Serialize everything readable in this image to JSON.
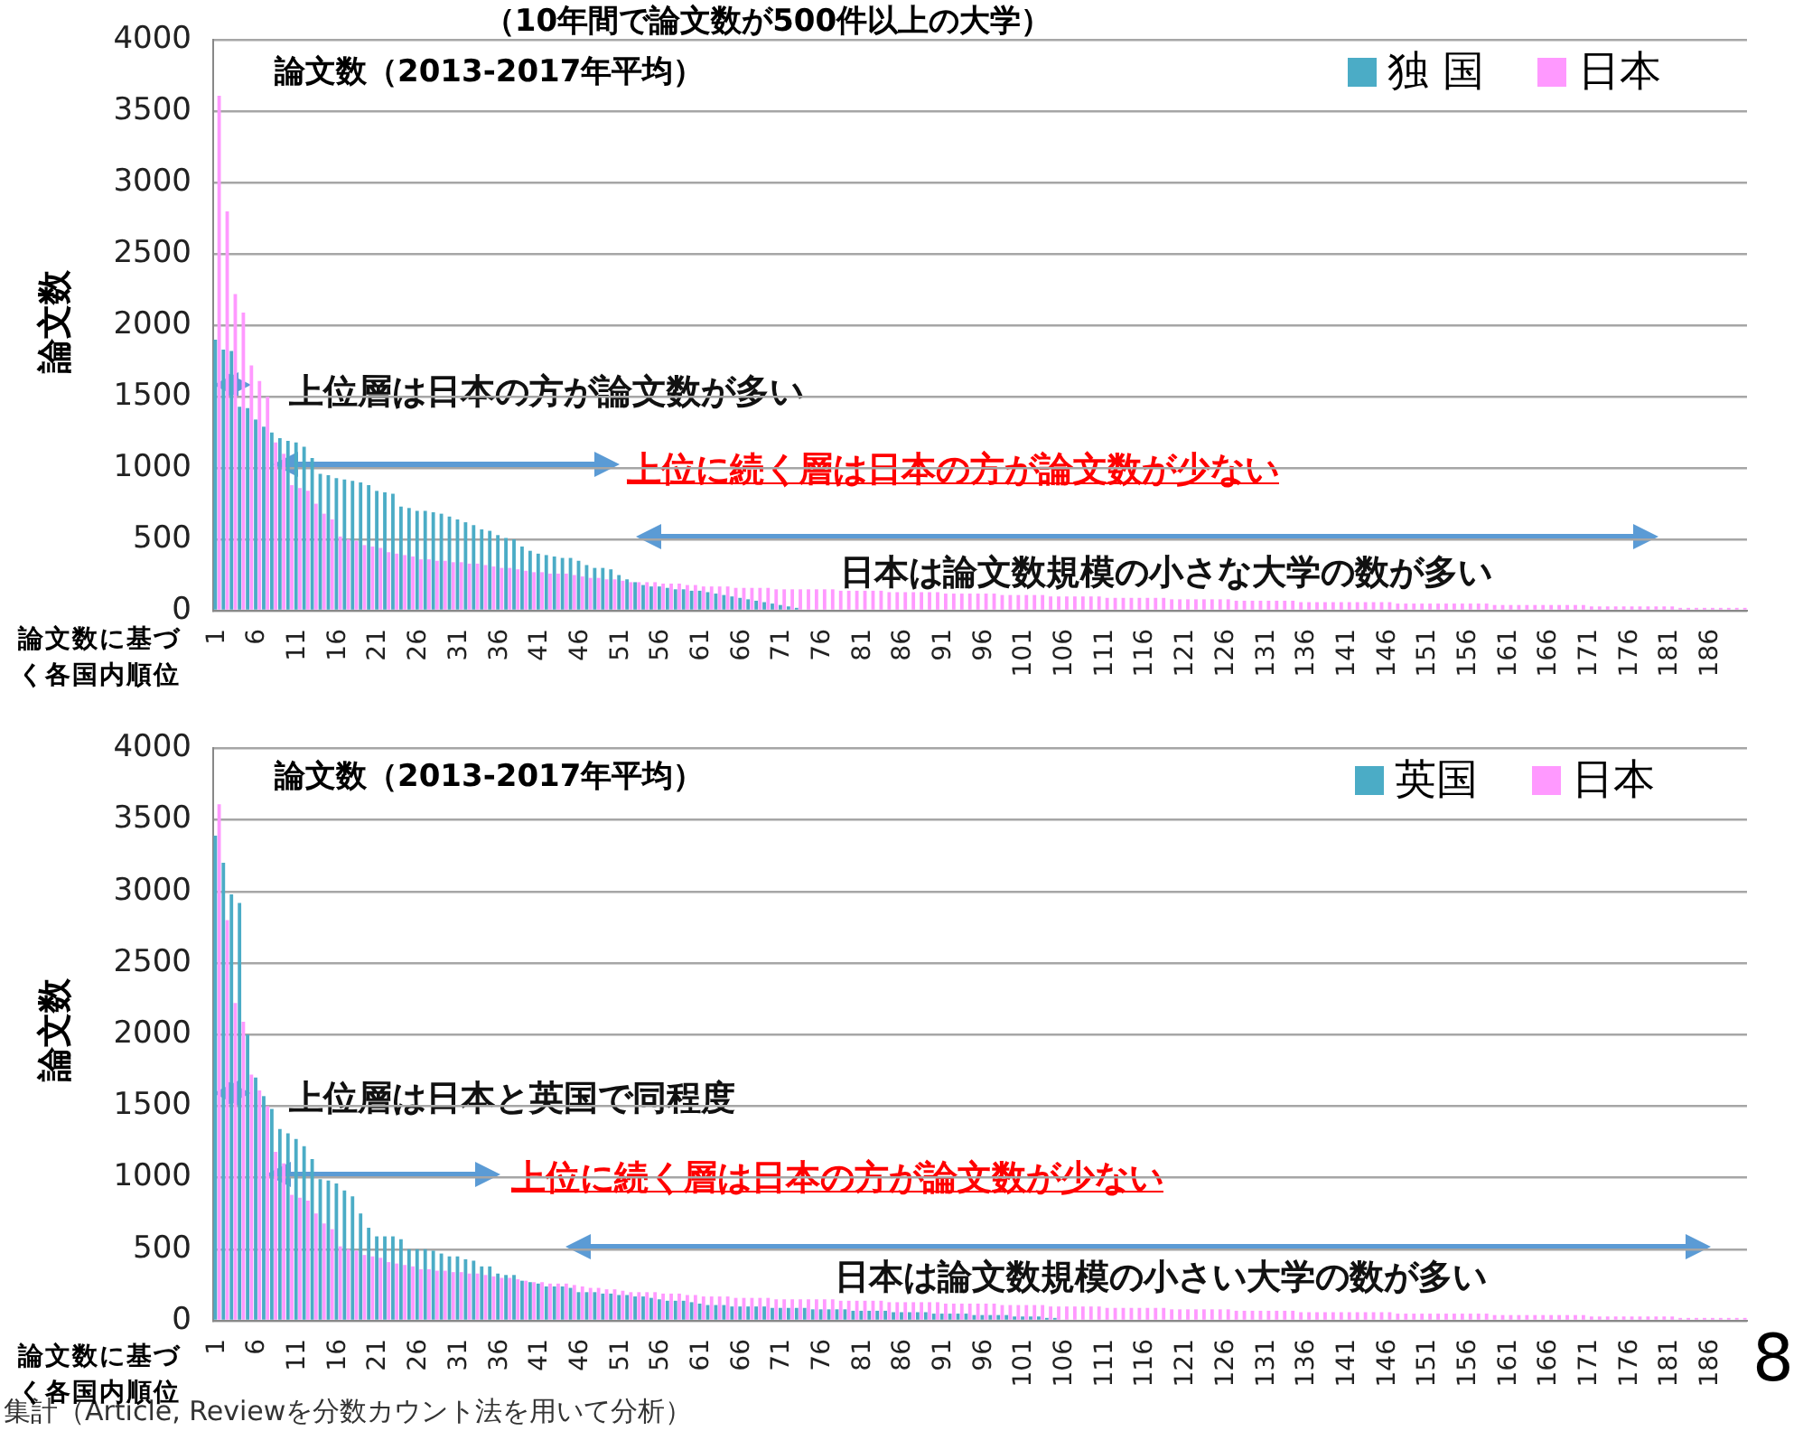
{
  "chart_data": [
    {
      "type": "bar",
      "title": "（10年間で論文数が500件以上の大学）",
      "subtitle": "論文数（2013-2017年平均）",
      "xlabel": "論文数に基づく各国内順位",
      "ylabel": "論文数",
      "categories": [
        "1",
        null,
        null,
        null,
        null,
        "6",
        null,
        null,
        null,
        null,
        "11",
        null,
        null,
        null,
        null,
        "16",
        null,
        null,
        null,
        null,
        "21",
        null,
        null,
        null,
        null,
        "26",
        null,
        null,
        null,
        null,
        "31",
        null,
        null,
        null,
        null,
        "36",
        null,
        null,
        null,
        null,
        "41",
        null,
        null,
        null,
        null,
        "46",
        null,
        null,
        null,
        null,
        "51",
        null,
        null,
        null,
        null,
        "56",
        null,
        null,
        null,
        null,
        "61",
        null,
        null,
        null,
        null,
        "66",
        null,
        null,
        null,
        null,
        "71",
        null,
        null,
        null,
        null,
        "76",
        null,
        null,
        null,
        null,
        "81",
        null,
        null,
        null,
        null,
        "86",
        null,
        null,
        null,
        null,
        "91",
        null,
        null,
        null,
        null,
        "96",
        null,
        null,
        null,
        null,
        "101",
        null,
        null,
        null,
        null,
        "106",
        null,
        null,
        null,
        null,
        "111",
        null,
        null,
        null,
        null,
        "116",
        null,
        null,
        null,
        null,
        "121",
        null,
        null,
        null,
        null,
        "126",
        null,
        null,
        null,
        null,
        "131",
        null,
        null,
        null,
        null,
        "136",
        null,
        null,
        null,
        null,
        "141",
        null,
        null,
        null,
        null,
        "146",
        null,
        null,
        null,
        null,
        "151",
        null,
        null,
        null,
        null,
        "156",
        null,
        null,
        null,
        null,
        "161",
        null,
        null,
        null,
        null,
        "166",
        null,
        null,
        null,
        null,
        "171",
        null,
        null,
        null,
        null,
        "176",
        null,
        null,
        null,
        null,
        "181",
        null,
        null,
        null,
        null,
        "186",
        null,
        null,
        null,
        null
      ],
      "series": [
        {
          "name": "独 国",
          "color": "#4bacc6",
          "values": [
            1900,
            1830,
            1820,
            1430,
            1420,
            1340,
            1290,
            1250,
            1210,
            1190,
            1180,
            1150,
            1070,
            960,
            950,
            930,
            920,
            910,
            900,
            880,
            840,
            830,
            820,
            730,
            720,
            700,
            700,
            690,
            680,
            660,
            640,
            620,
            600,
            570,
            560,
            530,
            510,
            500,
            450,
            420,
            400,
            390,
            380,
            370,
            370,
            350,
            320,
            300,
            300,
            290,
            250,
            220,
            200,
            180,
            170,
            170,
            160,
            150,
            150,
            140,
            140,
            130,
            120,
            110,
            100,
            90,
            80,
            70,
            60,
            50,
            40,
            30,
            20,
            null,
            null,
            null,
            null,
            null,
            null,
            null,
            null,
            null,
            null,
            null,
            null,
            null,
            null,
            null,
            null,
            null,
            null,
            null,
            null,
            null,
            null,
            null,
            null,
            null,
            null,
            null,
            null,
            null,
            null,
            null,
            null,
            null,
            null,
            null,
            null,
            null,
            null,
            null,
            null,
            null,
            null,
            null,
            null,
            null,
            null,
            null,
            null,
            null,
            null,
            null,
            null,
            null,
            null,
            null,
            null,
            null,
            null,
            null,
            null,
            null,
            null,
            null,
            null,
            null,
            null,
            null,
            null,
            null,
            null,
            null,
            null,
            null,
            null,
            null,
            null,
            null,
            null,
            null,
            null,
            null,
            null,
            null,
            null,
            null,
            null,
            null,
            null,
            null,
            null,
            null,
            null,
            null,
            null,
            null,
            null,
            null,
            null,
            null,
            null,
            null,
            null,
            null,
            null,
            null,
            null,
            null,
            null,
            null,
            null,
            null,
            null,
            null,
            null,
            null,
            null,
            null
          ]
        },
        {
          "name": "日本",
          "color": "#ff99ff",
          "values": [
            3610,
            2800,
            2220,
            2090,
            1720,
            1610,
            1500,
            1180,
            1100,
            880,
            860,
            840,
            750,
            680,
            640,
            520,
            500,
            490,
            460,
            450,
            440,
            410,
            400,
            390,
            380,
            360,
            360,
            350,
            350,
            340,
            340,
            330,
            330,
            320,
            310,
            300,
            300,
            290,
            280,
            270,
            270,
            260,
            260,
            260,
            250,
            240,
            230,
            230,
            220,
            220,
            210,
            200,
            200,
            200,
            200,
            190,
            190,
            190,
            180,
            180,
            170,
            170,
            170,
            170,
            160,
            160,
            160,
            160,
            160,
            150,
            150,
            150,
            150,
            150,
            150,
            150,
            150,
            140,
            140,
            140,
            140,
            140,
            140,
            130,
            130,
            130,
            130,
            130,
            130,
            130,
            120,
            120,
            120,
            120,
            120,
            120,
            120,
            110,
            110,
            110,
            110,
            110,
            110,
            100,
            100,
            100,
            100,
            100,
            100,
            100,
            90,
            90,
            90,
            90,
            90,
            90,
            90,
            90,
            80,
            80,
            80,
            80,
            80,
            80,
            80,
            80,
            70,
            70,
            70,
            70,
            70,
            70,
            70,
            70,
            60,
            60,
            60,
            60,
            60,
            60,
            60,
            60,
            60,
            60,
            60,
            60,
            50,
            50,
            50,
            50,
            50,
            50,
            50,
            50,
            50,
            50,
            50,
            50,
            40,
            40,
            40,
            40,
            40,
            40,
            40,
            40,
            40,
            40,
            40,
            40,
            30,
            30,
            30,
            30,
            30,
            30,
            30,
            30,
            30,
            30,
            30,
            20,
            20,
            20,
            20,
            20,
            20,
            20,
            20,
            20
          ]
        }
      ],
      "ylim": [
        0,
        4000
      ],
      "yticks": [
        0,
        500,
        1000,
        1500,
        2000,
        2500,
        3000,
        3500,
        4000
      ],
      "grid": "y",
      "legend": "top right",
      "annotations": [
        "上位層は日本の方が論文数が多い",
        "上位に続く層は日本の方が論文数が少ない",
        "日本は論文数規模の小さな大学の数が多い"
      ]
    },
    {
      "type": "bar",
      "subtitle": "論文数（2013-2017年平均）",
      "xlabel": "論文数に基づく各国内順位",
      "ylabel": "論文数",
      "categories": [
        "1",
        null,
        null,
        null,
        null,
        "6",
        null,
        null,
        null,
        null,
        "11",
        null,
        null,
        null,
        null,
        "16",
        null,
        null,
        null,
        null,
        "21",
        null,
        null,
        null,
        null,
        "26",
        null,
        null,
        null,
        null,
        "31",
        null,
        null,
        null,
        null,
        "36",
        null,
        null,
        null,
        null,
        "41",
        null,
        null,
        null,
        null,
        "46",
        null,
        null,
        null,
        null,
        "51",
        null,
        null,
        null,
        null,
        "56",
        null,
        null,
        null,
        null,
        "61",
        null,
        null,
        null,
        null,
        "66",
        null,
        null,
        null,
        null,
        "71",
        null,
        null,
        null,
        null,
        "76",
        null,
        null,
        null,
        null,
        "81",
        null,
        null,
        null,
        null,
        "86",
        null,
        null,
        null,
        null,
        "91",
        null,
        null,
        null,
        null,
        "96",
        null,
        null,
        null,
        null,
        "101",
        null,
        null,
        null,
        null,
        "106",
        null,
        null,
        null,
        null,
        "111",
        null,
        null,
        null,
        null,
        "116",
        null,
        null,
        null,
        null,
        "121",
        null,
        null,
        null,
        null,
        "126",
        null,
        null,
        null,
        null,
        "131",
        null,
        null,
        null,
        null,
        "136",
        null,
        null,
        null,
        null,
        "141",
        null,
        null,
        null,
        null,
        "146",
        null,
        null,
        null,
        null,
        "151",
        null,
        null,
        null,
        null,
        "156",
        null,
        null,
        null,
        null,
        "161",
        null,
        null,
        null,
        null,
        "166",
        null,
        null,
        null,
        null,
        "171",
        null,
        null,
        null,
        null,
        "176",
        null,
        null,
        null,
        null,
        "181",
        null,
        null,
        null,
        null,
        "186",
        null,
        null,
        null,
        null
      ],
      "series": [
        {
          "name": "英国",
          "color": "#4bacc6",
          "values": [
            3390,
            3200,
            2980,
            2920,
            2000,
            1700,
            1570,
            1480,
            1340,
            1310,
            1270,
            1220,
            1130,
            990,
            980,
            960,
            910,
            870,
            750,
            650,
            590,
            590,
            590,
            570,
            500,
            500,
            500,
            490,
            470,
            450,
            450,
            430,
            420,
            380,
            380,
            330,
            320,
            320,
            280,
            270,
            260,
            240,
            240,
            240,
            230,
            200,
            200,
            200,
            190,
            190,
            180,
            180,
            170,
            170,
            160,
            150,
            140,
            140,
            140,
            130,
            120,
            110,
            110,
            110,
            100,
            100,
            100,
            100,
            100,
            90,
            90,
            90,
            90,
            90,
            80,
            80,
            80,
            80,
            80,
            70,
            70,
            70,
            70,
            70,
            60,
            60,
            60,
            60,
            60,
            50,
            50,
            50,
            50,
            50,
            40,
            40,
            40,
            40,
            40,
            30,
            30,
            30,
            30,
            20,
            20,
            null,
            null,
            null,
            null,
            null,
            null,
            null,
            null,
            null,
            null,
            null,
            null,
            null,
            null,
            null,
            null,
            null,
            null,
            null,
            null,
            null,
            null,
            null,
            null,
            null,
            null,
            null,
            null,
            null,
            null,
            null,
            null,
            null,
            null,
            null,
            null,
            null,
            null,
            null,
            null,
            null,
            null,
            null,
            null,
            null,
            null,
            null,
            null,
            null,
            null,
            null,
            null,
            null,
            null,
            null,
            null,
            null,
            null,
            null,
            null,
            null,
            null,
            null,
            null,
            null,
            null,
            null,
            null,
            null,
            null,
            null,
            null,
            null,
            null,
            null,
            null,
            null,
            null,
            null,
            null,
            null,
            null,
            null,
            null,
            null
          ]
        },
        {
          "name": "日本",
          "color": "#ff99ff",
          "values": [
            3610,
            2800,
            2220,
            2090,
            1720,
            1610,
            1500,
            1180,
            1100,
            880,
            860,
            840,
            750,
            680,
            640,
            520,
            500,
            490,
            460,
            450,
            440,
            410,
            400,
            390,
            380,
            360,
            360,
            350,
            350,
            340,
            340,
            330,
            330,
            320,
            310,
            300,
            300,
            290,
            280,
            270,
            270,
            260,
            260,
            260,
            250,
            240,
            230,
            230,
            220,
            220,
            210,
            200,
            200,
            200,
            200,
            190,
            190,
            190,
            180,
            180,
            170,
            170,
            170,
            170,
            160,
            160,
            160,
            160,
            160,
            150,
            150,
            150,
            150,
            150,
            150,
            150,
            150,
            140,
            140,
            140,
            140,
            140,
            140,
            130,
            130,
            130,
            130,
            130,
            130,
            130,
            120,
            120,
            120,
            120,
            120,
            120,
            120,
            110,
            110,
            110,
            110,
            110,
            110,
            100,
            100,
            100,
            100,
            100,
            100,
            100,
            90,
            90,
            90,
            90,
            90,
            90,
            90,
            90,
            80,
            80,
            80,
            80,
            80,
            80,
            80,
            80,
            70,
            70,
            70,
            70,
            70,
            70,
            70,
            70,
            60,
            60,
            60,
            60,
            60,
            60,
            60,
            60,
            60,
            60,
            60,
            60,
            50,
            50,
            50,
            50,
            50,
            50,
            50,
            50,
            50,
            50,
            50,
            50,
            40,
            40,
            40,
            40,
            40,
            40,
            40,
            40,
            40,
            40,
            40,
            40,
            30,
            30,
            30,
            30,
            30,
            30,
            30,
            30,
            30,
            30,
            30,
            20,
            20,
            20,
            20,
            20,
            20,
            20,
            20,
            20
          ]
        }
      ],
      "ylim": [
        0,
        4000
      ],
      "yticks": [
        0,
        500,
        1000,
        1500,
        2000,
        2500,
        3000,
        3500,
        4000
      ],
      "grid": "y",
      "legend": "top right",
      "annotations": [
        "上位層は日本と英国で同程度",
        "上位に続く層は日本の方が論文数が少ない",
        "日本は論文数規模の小さい大学の数が多い",
        "集計（Article, Reviewを分数カウント法を用いて分析）",
        "8"
      ]
    }
  ]
}
